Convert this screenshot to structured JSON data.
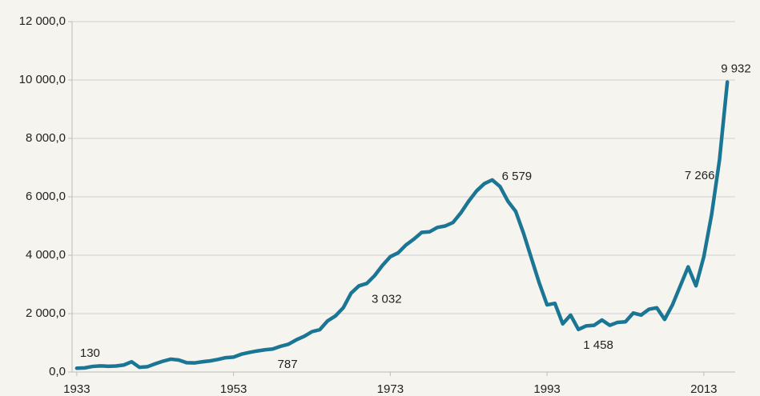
{
  "chart_data": {
    "type": "line",
    "x": [
      1933,
      1934,
      1935,
      1936,
      1937,
      1938,
      1939,
      1940,
      1941,
      1942,
      1943,
      1944,
      1945,
      1946,
      1947,
      1948,
      1949,
      1950,
      1951,
      1952,
      1953,
      1954,
      1955,
      1956,
      1957,
      1958,
      1959,
      1960,
      1961,
      1962,
      1963,
      1964,
      1965,
      1966,
      1967,
      1968,
      1969,
      1970,
      1971,
      1972,
      1973,
      1974,
      1975,
      1976,
      1977,
      1978,
      1979,
      1980,
      1981,
      1982,
      1983,
      1984,
      1985,
      1986,
      1987,
      1988,
      1989,
      1990,
      1991,
      1992,
      1993,
      1994,
      1995,
      1996,
      1997,
      1998,
      1999,
      2000,
      2001,
      2002,
      2003,
      2004,
      2005,
      2006,
      2007,
      2008,
      2009,
      2010,
      2011,
      2012,
      2013,
      2014,
      2015,
      2016
    ],
    "series": [
      {
        "color": "#1b7594",
        "values": [
          130,
          140,
          190,
          210,
          195,
          205,
          240,
          350,
          160,
          180,
          280,
          370,
          440,
          410,
          320,
          310,
          350,
          380,
          430,
          490,
          510,
          610,
          670,
          720,
          760,
          787,
          880,
          950,
          1100,
          1220,
          1380,
          1450,
          1750,
          1920,
          2200,
          2700,
          2950,
          3032,
          3300,
          3650,
          3950,
          4080,
          4350,
          4550,
          4780,
          4800,
          4950,
          5000,
          5120,
          5450,
          5850,
          6200,
          6450,
          6579,
          6350,
          5850,
          5500,
          4750,
          3900,
          3050,
          2300,
          2350,
          1650,
          1950,
          1458,
          1580,
          1600,
          1780,
          1600,
          1700,
          1720,
          2020,
          1950,
          2150,
          2200,
          1800,
          2300,
          2950,
          3600,
          2950,
          3950,
          5400,
          7266,
          9932
        ],
        "value_labels": [
          "130",
          null,
          null,
          null,
          null,
          null,
          null,
          null,
          null,
          null,
          null,
          null,
          null,
          null,
          null,
          null,
          null,
          null,
          null,
          null,
          null,
          null,
          null,
          null,
          null,
          "787",
          null,
          null,
          null,
          null,
          null,
          null,
          null,
          null,
          null,
          null,
          null,
          "3 032",
          null,
          null,
          null,
          null,
          null,
          null,
          null,
          null,
          null,
          null,
          null,
          null,
          null,
          null,
          null,
          "6 579",
          null,
          null,
          null,
          null,
          null,
          null,
          null,
          null,
          null,
          null,
          "1 458",
          null,
          null,
          null,
          null,
          null,
          null,
          null,
          null,
          null,
          null,
          null,
          null,
          null,
          null,
          null,
          null,
          null,
          "7 266",
          "9 932"
        ]
      }
    ],
    "xlim": [
      1932.4,
      2017.0
    ],
    "xticks": [
      1933,
      1953,
      1973,
      1993,
      2013
    ],
    "ylim": [
      0,
      12000
    ],
    "yticks": [
      {
        "value": 0,
        "label": "0,0"
      },
      {
        "value": 2000,
        "label": "2 000,0"
      },
      {
        "value": 4000,
        "label": "4 000,0"
      },
      {
        "value": 6000,
        "label": "6 000,0"
      },
      {
        "value": 8000,
        "label": "8 000,0"
      },
      {
        "value": 10000,
        "label": "10 000,0"
      },
      {
        "value": 12000,
        "label": "12 000,0"
      }
    ],
    "grid": true
  }
}
